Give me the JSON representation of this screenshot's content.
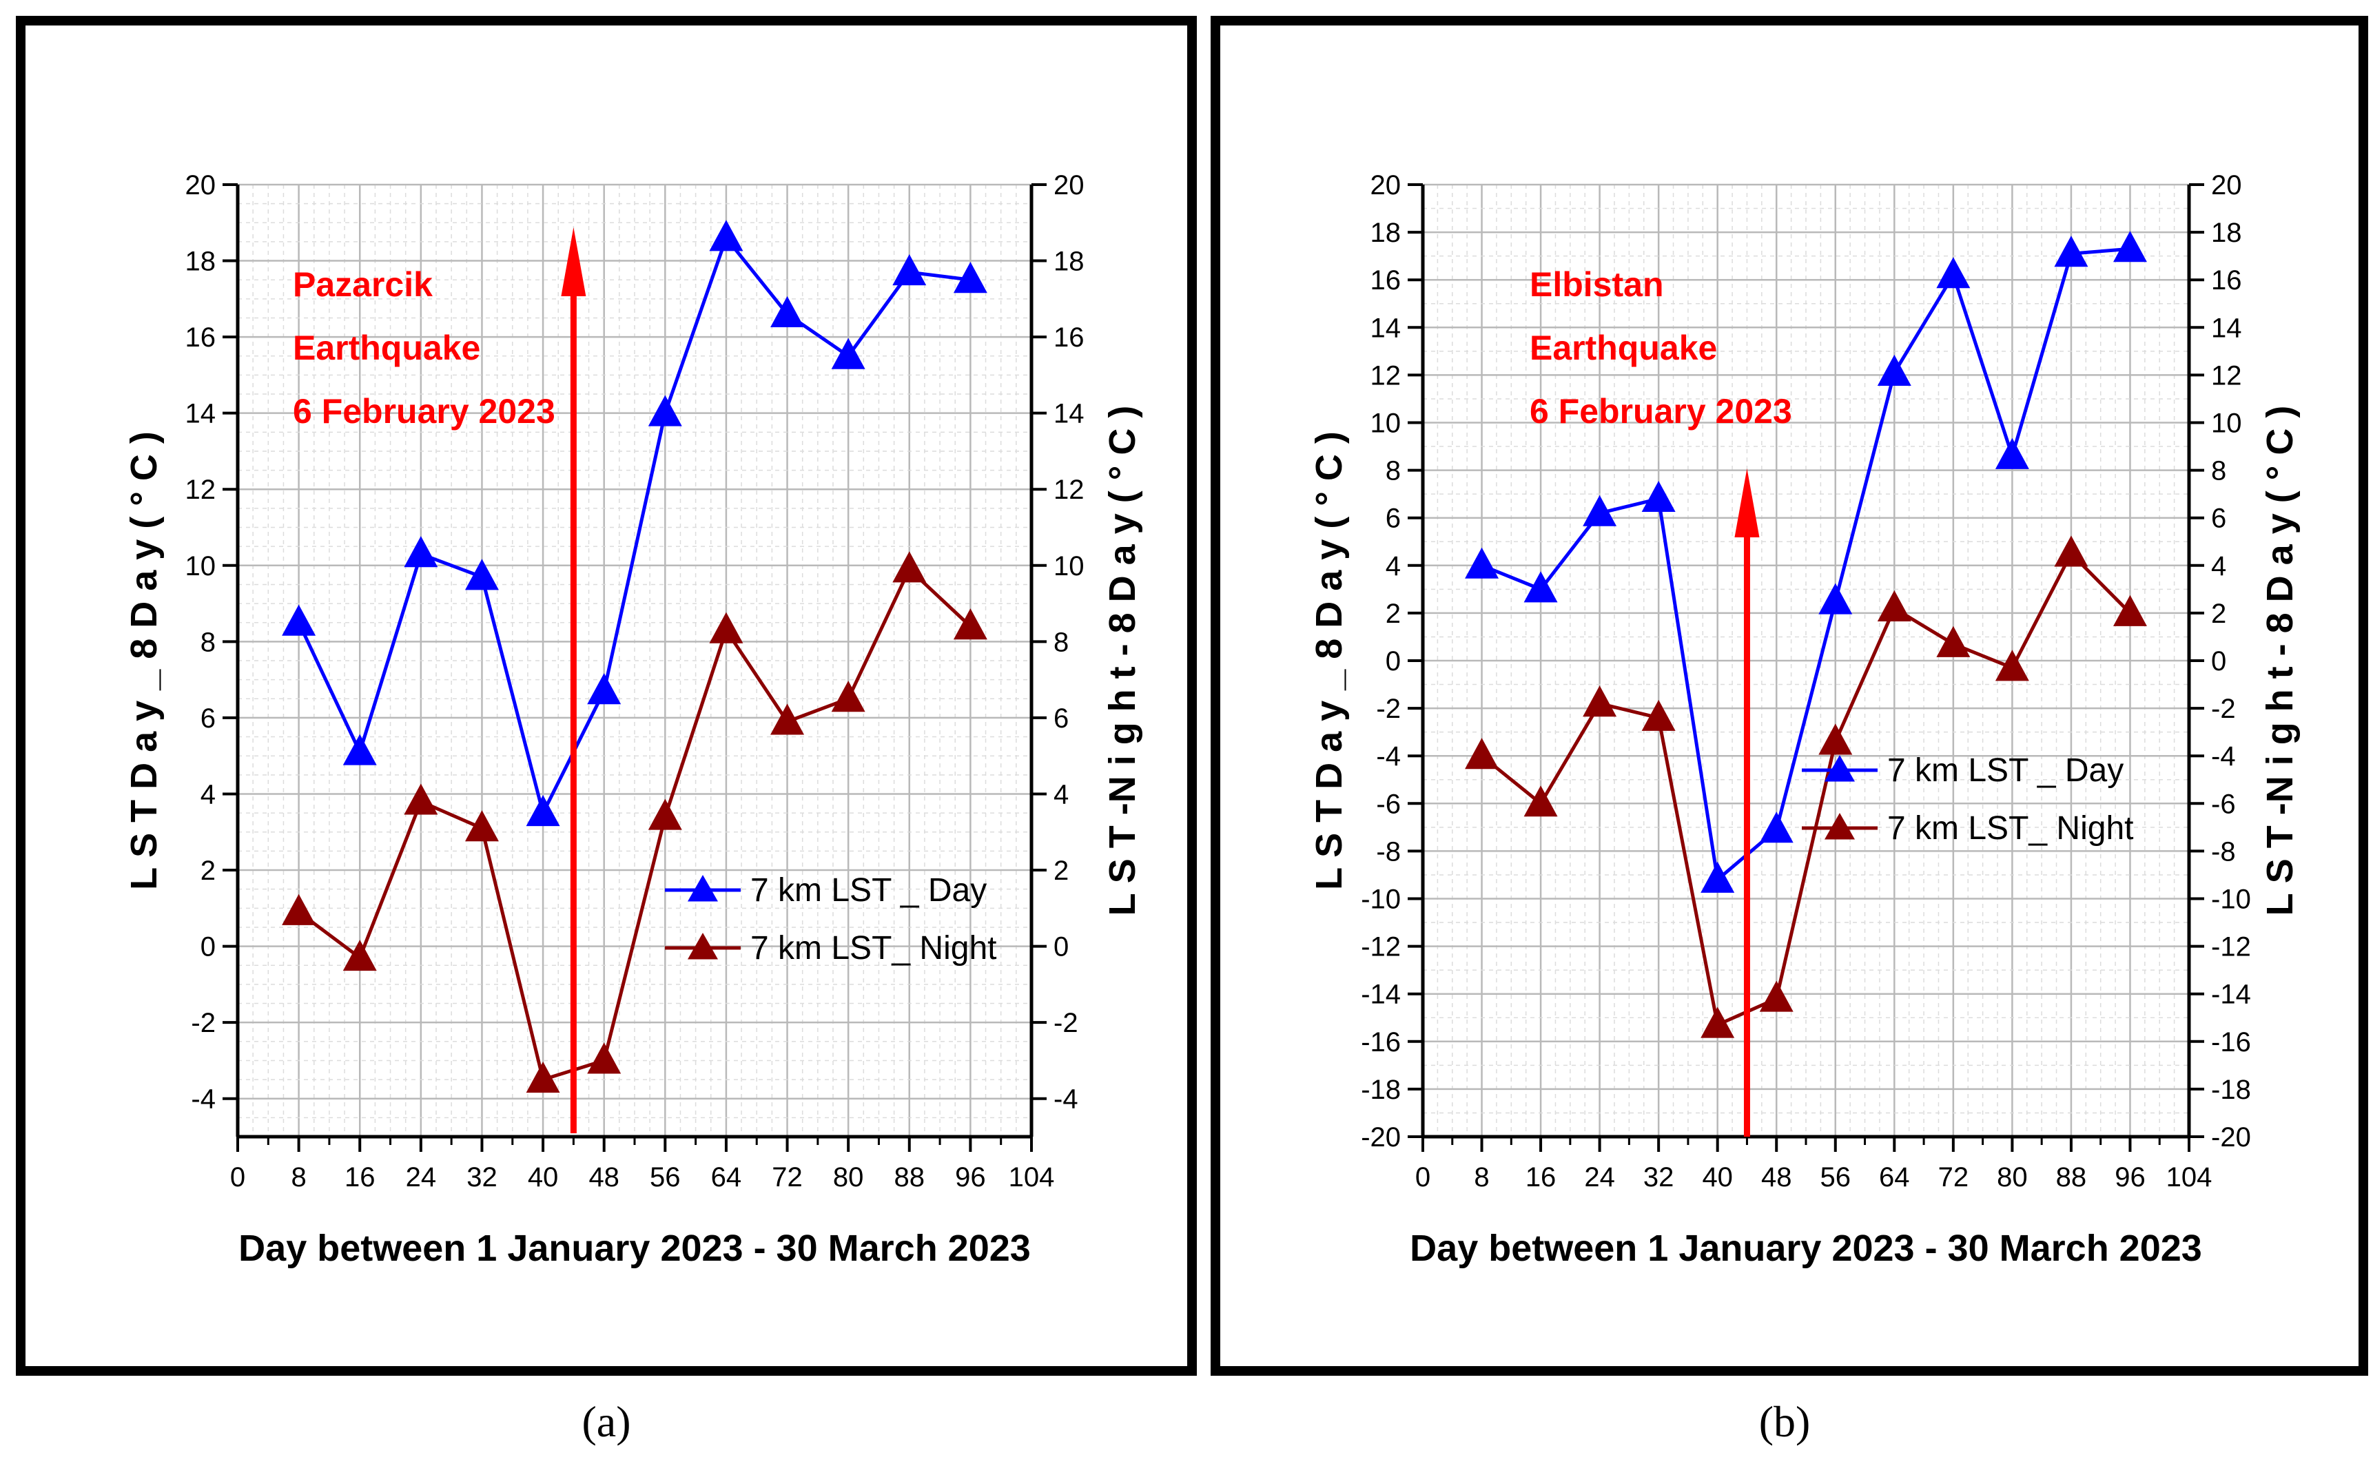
{
  "chart_data": [
    {
      "type": "line",
      "panel_label": "(a)",
      "x": [
        8,
        16,
        24,
        32,
        40,
        48,
        56,
        64,
        72,
        80,
        88,
        96
      ],
      "xlabel": "Day between 1 January 2023 - 30 March 2023",
      "xlim": [
        0,
        104
      ],
      "xticks": [
        "0",
        "8",
        "16",
        "24",
        "32",
        "40",
        "48",
        "56",
        "64",
        "72",
        "80",
        "88",
        "96",
        "104"
      ],
      "ylabel": "L S T  D a y _ 8 D a y ( ° C )",
      "ylabel_right": "L S T -N i g h t  - 8 D a y  ( ° C )",
      "ylim": [
        -5,
        20
      ],
      "yticks": [
        "-4",
        "-2",
        "0",
        "2",
        "4",
        "6",
        "8",
        "10",
        "12",
        "14",
        "16",
        "18",
        "20"
      ],
      "grid": true,
      "legend_position": "bottom-right",
      "annotation_lines": [
        "Pazarcik",
        "Earthquake",
        "6 February 2023"
      ],
      "event_arrow_day": 44,
      "series": [
        {
          "name": "7 km LST _ Day",
          "color": "#0000ff",
          "marker": "triangle",
          "values": [
            8.5,
            5.1,
            10.3,
            9.7,
            3.5,
            6.7,
            14.0,
            18.6,
            16.6,
            15.5,
            17.7,
            17.5
          ]
        },
        {
          "name": "7 km  LST_ Night",
          "color": "#8b0000",
          "marker": "triangle",
          "values": [
            0.9,
            -0.3,
            3.8,
            3.1,
            -3.5,
            -3.0,
            3.4,
            8.3,
            5.9,
            6.5,
            9.9,
            8.4
          ]
        }
      ]
    },
    {
      "type": "line",
      "panel_label": "(b)",
      "x": [
        8,
        16,
        24,
        32,
        40,
        48,
        56,
        64,
        72,
        80,
        88,
        96
      ],
      "xlabel": "Day between 1 January 2023 - 30 March 2023",
      "xlim": [
        0,
        104
      ],
      "xticks": [
        "0",
        "8",
        "16",
        "24",
        "32",
        "40",
        "48",
        "56",
        "64",
        "72",
        "80",
        "88",
        "96",
        "104"
      ],
      "ylabel": "L S T  D a y _ 8 D a y ( ° C )",
      "ylabel_right": "L S T -N i g h t  - 8 D a y  ( ° C )",
      "ylim": [
        -20,
        20
      ],
      "yticks": [
        "-20",
        "-18",
        "-16",
        "-14",
        "-12",
        "-10",
        "-8",
        "-6",
        "-4",
        "-2",
        "0",
        "2",
        "4",
        "6",
        "8",
        "10",
        "12",
        "14",
        "16",
        "18",
        "20"
      ],
      "grid": true,
      "legend_position": "center-right",
      "annotation_lines": [
        "Elbistan",
        "Earthquake",
        "6 February 2023"
      ],
      "event_arrow_day": 44,
      "series": [
        {
          "name": "7 km LST _ Day",
          "color": "#0000ff",
          "marker": "triangle",
          "values": [
            4.0,
            3.0,
            6.2,
            6.8,
            -9.2,
            -7.1,
            2.5,
            12.1,
            16.2,
            8.6,
            17.1,
            17.3
          ]
        },
        {
          "name": "7 km  LST_ Night",
          "color": "#8b0000",
          "marker": "triangle",
          "values": [
            -4.0,
            -6.0,
            -1.8,
            -2.4,
            -15.3,
            -14.2,
            -3.4,
            2.2,
            0.7,
            -0.3,
            4.5,
            2.0
          ]
        }
      ]
    }
  ]
}
